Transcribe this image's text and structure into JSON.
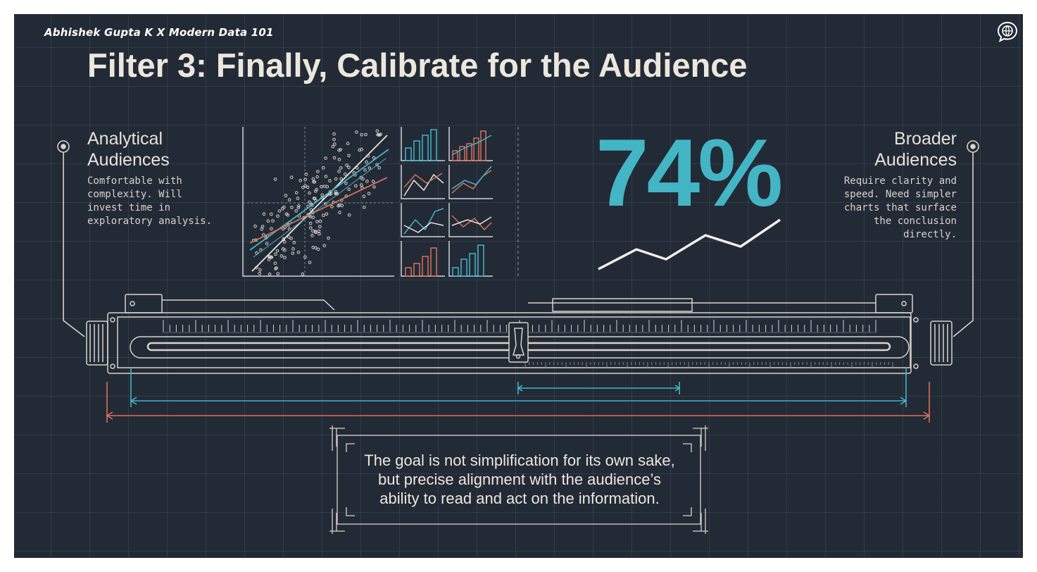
{
  "credit": "Abhishek Gupta K X Modern Data 101",
  "title": "Filter 3: Finally, Calibrate for the Audience",
  "left_panel": {
    "heading_line1": "Analytical",
    "heading_line2": "Audiences",
    "description": "Comfortable with\ncomplexity. Will\ninvest time in\nexploratory analysis."
  },
  "right_panel": {
    "heading_line1": "Broader",
    "heading_line2": "Audiences",
    "description": "Require clarity and\nspeed. Need simpler\ncharts that surface\nthe conclusion\ndirectly."
  },
  "stat": {
    "value": "74%"
  },
  "quote": {
    "line1": "The goal is not simplification for its own sake,",
    "line2": "but precise alignment with the audience’s",
    "line3": "ability to read and act on the information."
  },
  "icons": [
    "chat-bubble-icon",
    "scatter-plot-illustration",
    "small-multiples-illustration",
    "trend-line-illustration",
    "slide-ruler-illustration"
  ],
  "colors": {
    "background": "#222a36",
    "accent_teal": "#43b5c5",
    "accent_red": "#d9705a",
    "ink": "#ece7dc"
  }
}
